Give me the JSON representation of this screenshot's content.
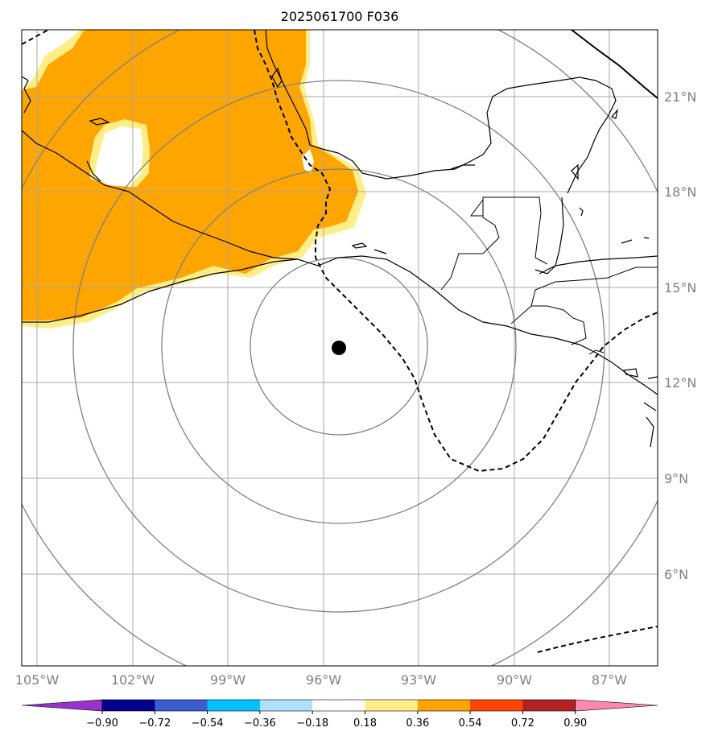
{
  "title": "2025061700 F036",
  "lon_ticks": [
    "105°W",
    "102°W",
    "99°W",
    "96°W",
    "93°W",
    "90°W",
    "87°W"
  ],
  "lat_ticks": [
    "21°N",
    "18°N",
    "15°N",
    "12°N",
    "9°N",
    "6°N"
  ],
  "colorbar": {
    "labels": [
      "−0.90",
      "−0.72",
      "−0.54",
      "−0.36",
      "−0.18",
      "0.18",
      "0.36",
      "0.54",
      "0.72",
      "0.90"
    ],
    "colors": [
      "#9932cc",
      "#00008b",
      "#3a5fcd",
      "#00bfff",
      "#b0e0ff",
      "#ffffff",
      "#ffee88",
      "#ffa500",
      "#ff4500",
      "#b22222",
      "#ff88b0"
    ]
  },
  "colors": {
    "shade_main": "#ffa500",
    "shade_edge": "#ffee88",
    "grid": "#a0a0a0",
    "rings": "#808080",
    "coast": "#000000"
  },
  "center_marker": {
    "lon": -95.5,
    "lat": 13.1
  }
}
